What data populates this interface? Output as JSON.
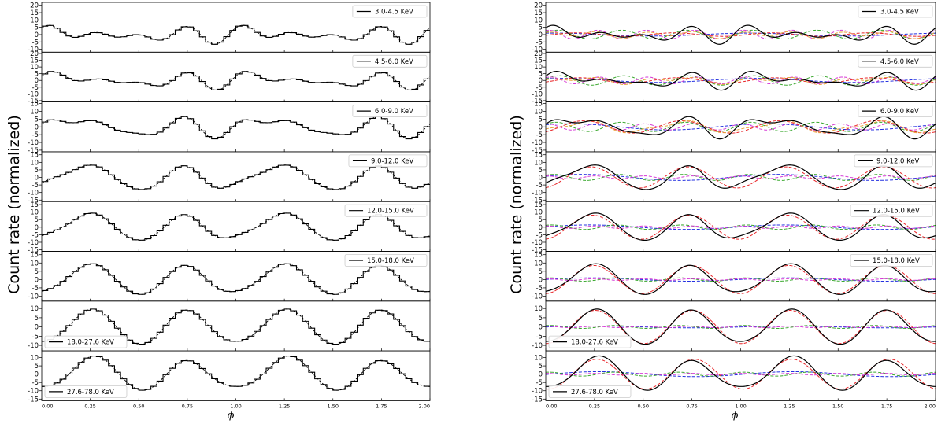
{
  "colors": {
    "black": "#000000",
    "red": "#e8262a",
    "blue": "#2430e0",
    "green": "#3aa82e",
    "magenta": "#d63ad6",
    "orange": "#e9a23a"
  },
  "chart_data": [
    {
      "type": "line",
      "xlabel": "ϕ",
      "ylabel": "Count rate (normalized)",
      "xlim": [
        0,
        2
      ],
      "x_ticks": [
        "0.00",
        "0.25",
        "0.50",
        "0.75",
        "1.00",
        "1.25",
        "1.50",
        "1.75",
        "2.00"
      ],
      "panels": [
        {
          "label": "3.0-4.5 KeV",
          "legend": "top-right",
          "yticks": [
            20,
            15,
            10,
            5,
            0,
            -5,
            -10
          ],
          "ylim": [
            -12,
            22
          ],
          "amps": [
            1.0,
            1.2,
            3.0,
            3.0
          ],
          "phases": [
            0.3,
            2.0,
            1.1,
            0.4
          ]
        },
        {
          "label": "4.5-6.0 KeV",
          "legend": "top-right",
          "yticks": [
            20,
            15,
            10,
            5,
            0,
            -5,
            -10,
            -15
          ],
          "ylim": [
            -16,
            21
          ],
          "amps": [
            1.5,
            2.0,
            3.5,
            2.5
          ],
          "phases": [
            0.5,
            2.2,
            1.3,
            0.6
          ]
        },
        {
          "label": "6.0-9.0 KeV",
          "legend": "top-right",
          "yticks": [
            15,
            10,
            5,
            0,
            -5,
            -10,
            -15
          ],
          "ylim": [
            -16,
            16
          ],
          "amps": [
            2.0,
            4.0,
            3.0,
            2.0
          ],
          "phases": [
            0.8,
            2.5,
            1.0,
            0.2
          ]
        },
        {
          "label": "9.0-12.0 KeV",
          "legend": "top-right",
          "yticks": [
            15,
            10,
            5,
            0,
            -5,
            -10,
            -15
          ],
          "ylim": [
            -16,
            17
          ],
          "amps": [
            2.0,
            7.0,
            2.0,
            1.0
          ],
          "phases": [
            1.2,
            2.9,
            0.8,
            0.1
          ]
        },
        {
          "label": "12.0-15.0 KeV",
          "legend": "top-right",
          "yticks": [
            15,
            10,
            5,
            0,
            -5,
            -10,
            -15
          ],
          "ylim": [
            -16,
            17
          ],
          "amps": [
            1.5,
            8.0,
            1.5,
            0.8
          ],
          "phases": [
            1.4,
            3.0,
            0.6,
            0.1
          ]
        },
        {
          "label": "15.0-18.0 KeV",
          "legend": "top-right",
          "yticks": [
            15,
            10,
            5,
            0,
            -5,
            -10
          ],
          "ylim": [
            -13,
            17
          ],
          "amps": [
            1.0,
            8.5,
            1.0,
            0.5
          ],
          "phases": [
            1.5,
            3.1,
            0.5,
            0.0
          ]
        },
        {
          "label": "18.0-27.6 KeV",
          "legend": "bottom-left",
          "yticks": [
            10,
            5,
            0,
            -5,
            -10
          ],
          "ylim": [
            -13,
            14
          ],
          "amps": [
            0.5,
            9.0,
            0.8,
            0.4
          ],
          "phases": [
            1.6,
            3.2,
            0.4,
            0.0
          ]
        },
        {
          "label": "27.6-78.0 KeV",
          "legend": "bottom-left",
          "yticks": [
            10,
            5,
            0,
            -5,
            -10,
            -15
          ],
          "ylim": [
            -16,
            14
          ],
          "amps": [
            1.5,
            9.0,
            1.2,
            0.5
          ],
          "phases": [
            1.7,
            3.3,
            0.3,
            0.0
          ]
        }
      ],
      "left_components": [
        "profile histogram (solid)",
        "fit (dashed)"
      ],
      "right_components": [
        "total (solid black)",
        "harmonics (dashed red, blue, green, magenta, orange)"
      ]
    }
  ]
}
